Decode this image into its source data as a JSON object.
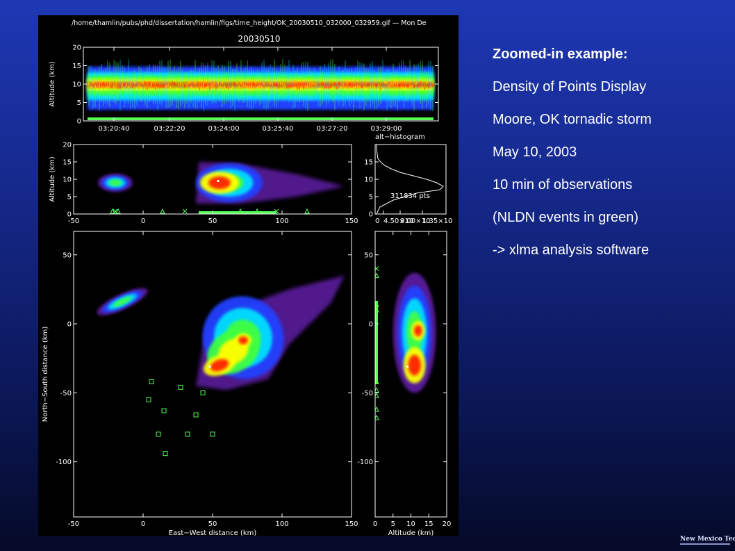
{
  "figure": {
    "file_path": "/home/thamlin/pubs/phd/dissertation/hamlin/figs/time_height/OK_20030510_032000_032959.gif  —  Mon De",
    "date_title": "20030510",
    "histogram_title": "alt−histogram",
    "histogram_count": "311834 pts"
  },
  "slide": {
    "heading": "Zoomed-in example:",
    "lines": [
      "Density of Points Display",
      "Moore, OK tornadic storm",
      "May 10, 2003",
      "10 min of observations",
      "(NLDN events in green)",
      "-> xlma analysis software"
    ]
  },
  "logo": {
    "text": "New Mexico Tech"
  },
  "colors": {
    "background_top": "#1e38b4",
    "background_bottom": "#050a28",
    "plot_background": "#000000",
    "nldn_marker": "#55ff55",
    "density_scale": [
      "#5a1c9c",
      "#2040ff",
      "#00e0ff",
      "#40ff40",
      "#ffff00",
      "#ff2000"
    ]
  },
  "chart_data": [
    {
      "type": "heatmap",
      "panel": "time-height",
      "title": "20030510",
      "xlabel": "",
      "ylabel": "Altitude (km)",
      "x_tick_labels": [
        "03:20:40",
        "03:22:20",
        "03:24:00",
        "03:25:40",
        "03:27:20",
        "03:29:00"
      ],
      "y_ticks": [
        0,
        5,
        10,
        15,
        20
      ],
      "ylim": [
        0,
        20
      ],
      "density_core_altitude_km": [
        7,
        12
      ],
      "nldn_markers_at_altitude_km": 0
    },
    {
      "type": "heatmap",
      "panel": "east-west altitude",
      "ylabel": "Altitude (km)",
      "x_ticks": [
        -50,
        0,
        50,
        100,
        150
      ],
      "xlim": [
        -50,
        150
      ],
      "y_ticks": [
        0,
        5,
        10,
        15,
        20
      ],
      "ylim": [
        0,
        20
      ],
      "density_regions": [
        {
          "ew_km": [
            -30,
            -5
          ],
          "alt_km": [
            6,
            12
          ]
        },
        {
          "ew_km": [
            38,
            145
          ],
          "alt_km": [
            3,
            16
          ]
        }
      ]
    },
    {
      "type": "line",
      "panel": "altitude histogram",
      "title": "alt−histogram",
      "annotation": "311834 pts",
      "x_tick_labels": [
        "0",
        "4.50×10",
        "9.00×10",
        "1.35×10"
      ],
      "y_ticks": [
        0,
        5,
        10,
        15
      ],
      "ylim": [
        0,
        20
      ],
      "profile_altitude_km": [
        0,
        2,
        4,
        6,
        7,
        8,
        9,
        10,
        11,
        12,
        13,
        14,
        15,
        16,
        18,
        20
      ],
      "profile_relative": [
        0.0,
        0.05,
        0.25,
        0.6,
        0.95,
        1.0,
        0.9,
        0.75,
        0.55,
        0.35,
        0.22,
        0.12,
        0.06,
        0.02,
        0.005,
        0.0
      ]
    },
    {
      "type": "heatmap",
      "panel": "plan view",
      "xlabel": "East−West distance (km)",
      "ylabel": "North−South distance (km)",
      "x_ticks": [
        -50,
        0,
        50,
        100,
        150
      ],
      "xlim": [
        -50,
        150
      ],
      "y_ticks": [
        -100,
        -50,
        0,
        50
      ],
      "ylim": [
        -140,
        67
      ],
      "density_regions": [
        {
          "ew_km": [
            -30,
            10
          ],
          "ns_km": [
            5,
            27
          ]
        },
        {
          "ew_km": [
            38,
            145
          ],
          "ns_km": [
            -48,
            35
          ]
        }
      ],
      "nldn_squares": [
        {
          "x": 6,
          "y": -42
        },
        {
          "x": 27,
          "y": -46
        },
        {
          "x": 43,
          "y": -50
        },
        {
          "x": 4,
          "y": -55
        },
        {
          "x": 15,
          "y": -63
        },
        {
          "x": 38,
          "y": -66
        },
        {
          "x": 11,
          "y": -80
        },
        {
          "x": 32,
          "y": -80
        },
        {
          "x": 50,
          "y": -80
        },
        {
          "x": 16,
          "y": -94
        }
      ]
    },
    {
      "type": "heatmap",
      "panel": "altitude north-south",
      "xlabel": "Altitude (km)",
      "x_ticks": [
        0,
        5,
        10,
        15,
        20
      ],
      "xlim": [
        0,
        20
      ],
      "y_ticks": [
        -100,
        -50,
        0,
        50
      ],
      "ylim": [
        -140,
        67
      ],
      "density_region": {
        "alt_km": [
          5,
          17
        ],
        "ns_km": [
          -50,
          37
        ]
      },
      "nldn_markers_at_altitude_km": 0
    }
  ]
}
